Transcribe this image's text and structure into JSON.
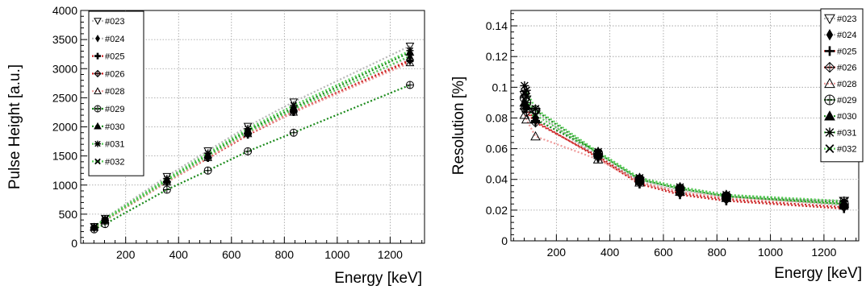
{
  "chart_data": [
    {
      "type": "line",
      "xlabel": "Energy [keV]",
      "ylabel": "Pulse Height [a.u.]",
      "xlim": [
        30,
        1330
      ],
      "ylim": [
        0,
        4000
      ],
      "xticks": [
        200,
        400,
        600,
        800,
        1000,
        1200
      ],
      "yticks": [
        0,
        500,
        1000,
        1500,
        2000,
        2500,
        3000,
        3500,
        4000
      ],
      "grid": true,
      "legend_position": "top-left",
      "x": [
        81,
        122,
        356,
        511,
        662,
        835,
        1275
      ],
      "series": [
        {
          "name": "#023",
          "marker": "triangle-down-open",
          "color": "#b8b8b8",
          "values": [
            290,
            430,
            1150,
            1590,
            2010,
            2430,
            3390
          ]
        },
        {
          "name": "#024",
          "marker": "diamond",
          "color": "#b8b8b8",
          "values": [
            275,
            405,
            1080,
            1500,
            1920,
            2300,
            3200
          ]
        },
        {
          "name": "#025",
          "marker": "cross",
          "color": "#cc2222",
          "values": [
            265,
            390,
            1050,
            1460,
            1860,
            2250,
            3130
          ]
        },
        {
          "name": "#026",
          "marker": "diamond-cross",
          "color": "#cc2222",
          "values": [
            270,
            395,
            1060,
            1470,
            1880,
            2260,
            3150
          ]
        },
        {
          "name": "#028",
          "marker": "triangle-up-open",
          "color": "#ee9999",
          "values": [
            270,
            395,
            1050,
            1470,
            1880,
            2250,
            3100
          ]
        },
        {
          "name": "#029",
          "marker": "circle-plus",
          "color": "#1a8a1a",
          "values": [
            240,
            330,
            920,
            1250,
            1580,
            1900,
            2720
          ]
        },
        {
          "name": "#030",
          "marker": "triangle-up",
          "color": "#1a8a1a",
          "values": [
            275,
            410,
            1090,
            1520,
            1940,
            2330,
            3280
          ]
        },
        {
          "name": "#031",
          "marker": "star",
          "color": "#55cc55",
          "values": [
            285,
            420,
            1110,
            1550,
            1970,
            2370,
            3310
          ]
        },
        {
          "name": "#032",
          "marker": "x",
          "color": "#55cc55",
          "values": [
            270,
            400,
            1070,
            1500,
            1910,
            2300,
            3220
          ]
        }
      ]
    },
    {
      "type": "line",
      "xlabel": "Energy [keV]",
      "ylabel": "Resolution [%]",
      "xlim": [
        30,
        1330
      ],
      "ylim": [
        0,
        0.15
      ],
      "xticks": [
        200,
        400,
        600,
        800,
        1000,
        1200
      ],
      "yticks": [
        0,
        0.02,
        0.04,
        0.06,
        0.08,
        0.1,
        0.12,
        0.14
      ],
      "ytick_labels": [
        "0",
        "0.02",
        "0.04",
        "0.06",
        "0.08",
        "0.1",
        "0.12",
        "0.14"
      ],
      "grid": true,
      "legend_position": "top-right",
      "x": [
        81,
        88,
        122,
        356,
        511,
        662,
        835,
        1275
      ],
      "series": [
        {
          "name": "#023",
          "marker": "triangle-down-open",
          "color": "#b8b8b8",
          "values": [
            0.095,
            0.092,
            0.084,
            0.054,
            0.039,
            0.032,
            0.028,
            0.026
          ]
        },
        {
          "name": "#024",
          "marker": "diamond",
          "color": "#b8b8b8",
          "values": [
            0.09,
            0.087,
            0.08,
            0.056,
            0.04,
            0.033,
            0.029,
            0.023
          ]
        },
        {
          "name": "#025",
          "marker": "cross",
          "color": "#cc2222",
          "values": [
            0.088,
            0.086,
            0.078,
            0.054,
            0.037,
            0.03,
            0.026,
            0.021
          ]
        },
        {
          "name": "#026",
          "marker": "diamond-cross",
          "color": "#cc2222",
          "values": [
            0.086,
            0.084,
            0.077,
            0.055,
            0.038,
            0.031,
            0.027,
            0.022
          ]
        },
        {
          "name": "#028",
          "marker": "triangle-up-open",
          "color": "#ee9999",
          "values": [
            0.082,
            0.079,
            0.068,
            0.053,
            0.038,
            0.032,
            0.028,
            0.024
          ]
        },
        {
          "name": "#029",
          "marker": "circle-plus",
          "color": "#1a8a1a",
          "values": [
            0.093,
            0.09,
            0.085,
            0.057,
            0.04,
            0.034,
            0.029,
            0.024
          ]
        },
        {
          "name": "#030",
          "marker": "triangle-up",
          "color": "#1a8a1a",
          "values": [
            0.09,
            0.088,
            0.079,
            0.058,
            0.041,
            0.035,
            0.03,
            0.025
          ]
        },
        {
          "name": "#031",
          "marker": "star",
          "color": "#55cc55",
          "values": [
            0.101,
            0.098,
            0.086,
            0.058,
            0.041,
            0.035,
            0.03,
            0.026
          ]
        },
        {
          "name": "#032",
          "marker": "x",
          "color": "#55cc55",
          "values": [
            0.096,
            0.094,
            0.082,
            0.057,
            0.04,
            0.034,
            0.029,
            0.024
          ]
        }
      ]
    }
  ]
}
